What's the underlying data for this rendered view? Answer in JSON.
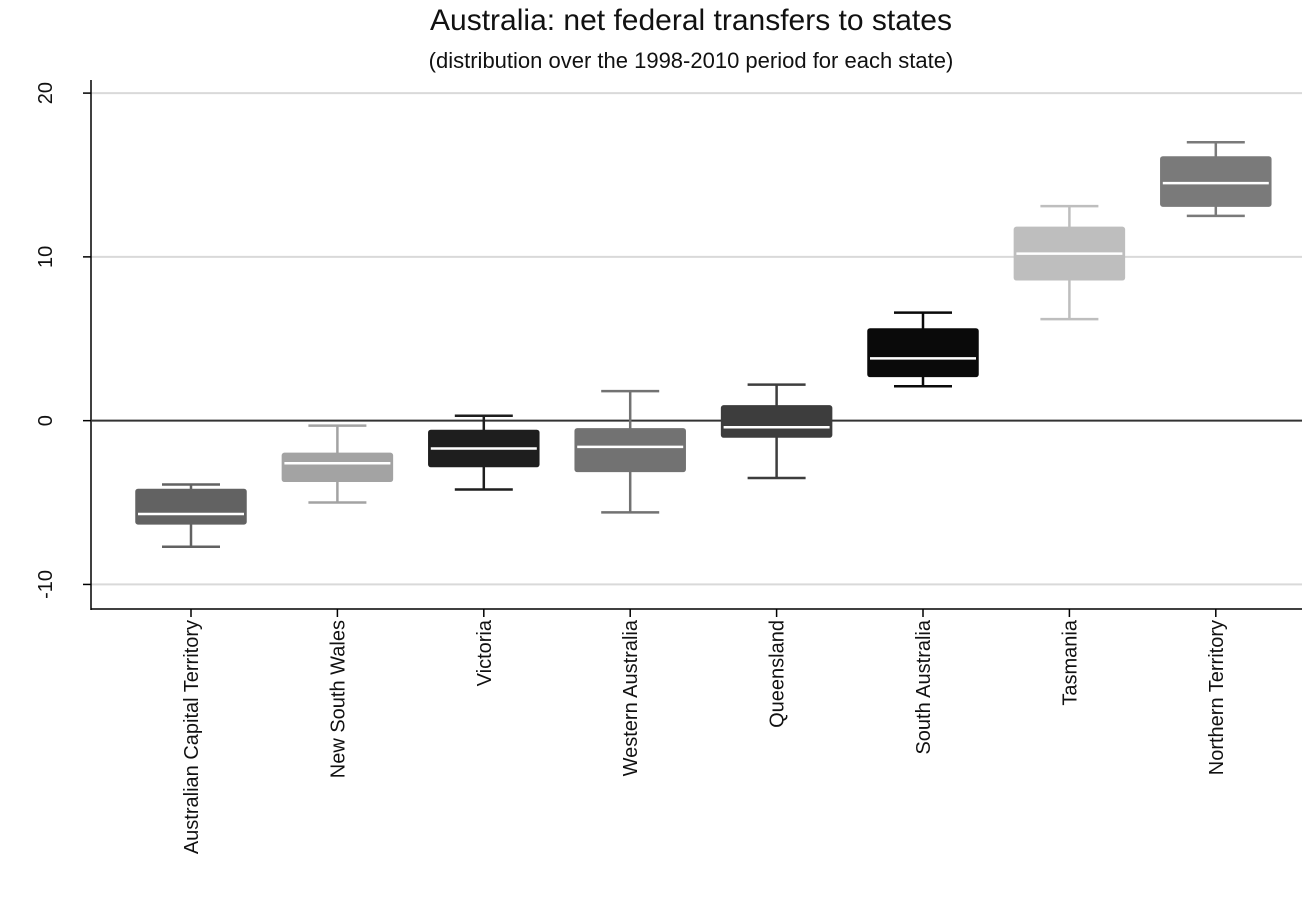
{
  "chart_data": {
    "type": "box",
    "title": "Australia: net federal transfers to states",
    "subtitle": "(distribution over the 1998-2010 period for each state)",
    "xlabel": "",
    "ylabel": "",
    "ylim": [
      -11.5,
      20.8
    ],
    "yticks": [
      20,
      10,
      0,
      -10
    ],
    "ytick_labels": [
      "20",
      "10",
      "0",
      "-10"
    ],
    "reference_line": 0,
    "grid": true,
    "categories": [
      "Australian Capital Territory",
      "New South Wales",
      "Victoria",
      "Western Australia",
      "Queensland",
      "South Australia",
      "Tasmania",
      "Northern Territory"
    ],
    "boxes": [
      {
        "category": "Australian Capital Territory",
        "whisker_low": -7.7,
        "q1": -6.3,
        "median": -5.7,
        "q3": -4.2,
        "whisker_high": -3.9,
        "color": "#626262"
      },
      {
        "category": "New South Wales",
        "whisker_low": -5.0,
        "q1": -3.7,
        "median": -2.6,
        "q3": -2.0,
        "whisker_high": -0.3,
        "color": "#a3a3a3"
      },
      {
        "category": "Victoria",
        "whisker_low": -4.2,
        "q1": -2.8,
        "median": -1.7,
        "q3": -0.6,
        "whisker_high": 0.3,
        "color": "#1e1e1e"
      },
      {
        "category": "Western Australia",
        "whisker_low": -5.6,
        "q1": -3.1,
        "median": -1.6,
        "q3": -0.5,
        "whisker_high": 1.8,
        "color": "#727272"
      },
      {
        "category": "Queensland",
        "whisker_low": -3.5,
        "q1": -1.0,
        "median": -0.4,
        "q3": 0.9,
        "whisker_high": 2.2,
        "color": "#3d3d3d"
      },
      {
        "category": "South Australia",
        "whisker_low": 2.1,
        "q1": 2.7,
        "median": 3.8,
        "q3": 5.6,
        "whisker_high": 6.6,
        "color": "#0a0a0a"
      },
      {
        "category": "Tasmania",
        "whisker_low": 6.2,
        "q1": 8.6,
        "median": 10.2,
        "q3": 11.8,
        "whisker_high": 13.1,
        "color": "#bebebe"
      },
      {
        "category": "Northern Territory",
        "whisker_low": 12.5,
        "q1": 13.1,
        "median": 14.5,
        "q3": 16.1,
        "whisker_high": 17.0,
        "color": "#7a7a7a"
      }
    ]
  }
}
